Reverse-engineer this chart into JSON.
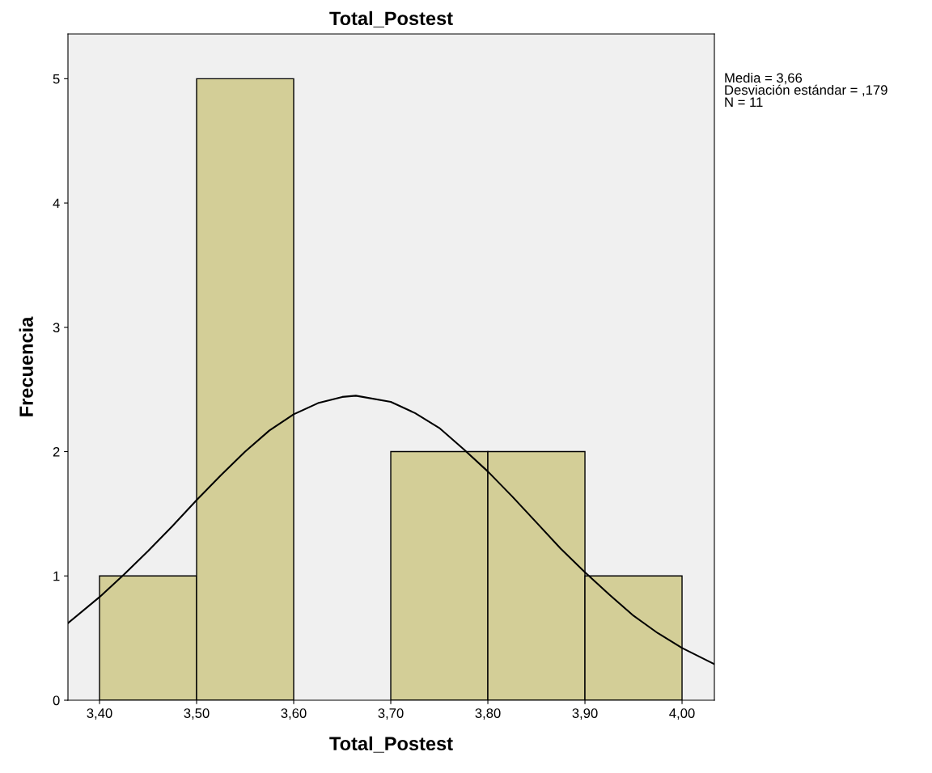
{
  "chart_data": {
    "type": "histogram",
    "title": "Total_Postest",
    "xlabel": "Total_Postest",
    "ylabel": "Frecuencia",
    "series": [
      {
        "bins": [
          3.4,
          3.5,
          3.6,
          3.7,
          3.8,
          3.9,
          4.0
        ],
        "values": [
          1,
          5,
          0,
          2,
          2,
          1
        ],
        "color": "#d3ce97"
      },
      {
        "type": "line",
        "color": "#000000",
        "x": [
          3.3675,
          3.4,
          3.425,
          3.45,
          3.475,
          3.5,
          3.525,
          3.55,
          3.575,
          3.6,
          3.625,
          3.65,
          3.664,
          3.7,
          3.725,
          3.75,
          3.775,
          3.8,
          3.825,
          3.85,
          3.875,
          3.9,
          3.925,
          3.95,
          3.975,
          4.0,
          4.0333
        ],
        "values": [
          0.62,
          0.83,
          1.01,
          1.2,
          1.4,
          1.61,
          1.81,
          2.0,
          2.17,
          2.3,
          2.39,
          2.44,
          2.45,
          2.4,
          2.31,
          2.19,
          2.02,
          1.84,
          1.64,
          1.43,
          1.22,
          1.03,
          0.85,
          0.68,
          0.54,
          0.42,
          0.29
        ]
      }
    ],
    "xlim": [
      3.3675,
      4.0333
    ],
    "ylim": [
      0,
      5.36
    ],
    "xticks": [
      {
        "value": 3.4,
        "label": "3,40"
      },
      {
        "value": 3.5,
        "label": "3,50"
      },
      {
        "value": 3.6,
        "label": "3,60"
      },
      {
        "value": 3.7,
        "label": "3,70"
      },
      {
        "value": 3.8,
        "label": "3,80"
      },
      {
        "value": 3.9,
        "label": "3,90"
      },
      {
        "value": 4.0,
        "label": "4,00"
      }
    ],
    "yticks": [
      0,
      1,
      2,
      3,
      4,
      5
    ],
    "annotations": [
      "Media = 3,66\nDesviación estándar = ,179\nN = 11"
    ],
    "grid": false,
    "legend": false
  }
}
